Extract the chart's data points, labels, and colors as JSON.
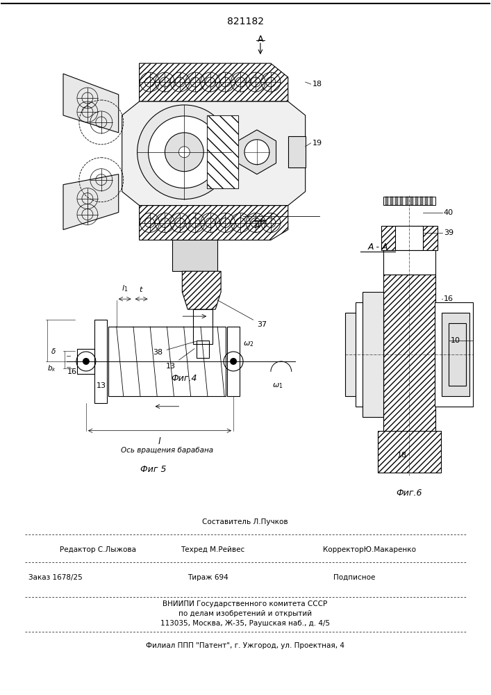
{
  "patent_number": "821182",
  "background_color": "#ffffff",
  "fig_width": 7.07,
  "fig_height": 10.0,
  "dpi": 100,
  "bottom_text_1": "Составитель Л.Пучков",
  "bottom_text_5": "ВНИИПИ Государственного комитета СССР",
  "bottom_text_6": "по делам изобретений и открытий",
  "bottom_text_7": "113035, Москва, Ж-35, Раушская наб., д. 4/5",
  "bottom_text_8": "Филиал ППП \"Патент\", г. Ужгород, ул. Проектная, 4",
  "axis_label_text": "Ось вращения барабана",
  "fig4_label": "Фиг.4",
  "fig5_label": "Фиг 5",
  "fig6_label": "Фиг.6"
}
